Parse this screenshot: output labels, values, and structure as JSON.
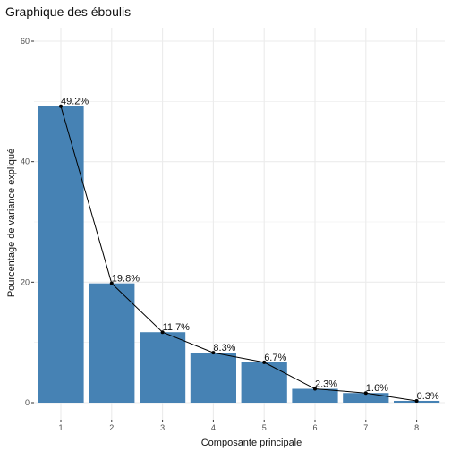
{
  "chart_data": {
    "type": "bar",
    "title": "Graphique des éboulis",
    "xlabel": "Composante principale",
    "ylabel": "Pourcentage de variance expliqué",
    "categories": [
      "1",
      "2",
      "3",
      "4",
      "5",
      "6",
      "7",
      "8"
    ],
    "values": [
      49.2,
      19.8,
      11.7,
      8.3,
      6.7,
      2.3,
      1.6,
      0.3
    ],
    "data_labels": [
      "49.2%",
      "19.8%",
      "11.7%",
      "8.3%",
      "6.7%",
      "2.3%",
      "1.6%",
      "0.3%"
    ],
    "overlay": "line with points",
    "ylim": [
      0,
      60
    ],
    "y_ticks": [
      0,
      20,
      40,
      60
    ],
    "y_tick_labels": [
      "0",
      "20",
      "40",
      "60"
    ],
    "grid": true,
    "bar_color": "#4682B4",
    "line_color": "#000000",
    "panel_background": "#FFFFFF",
    "grid_color": "#EBEBEB"
  }
}
